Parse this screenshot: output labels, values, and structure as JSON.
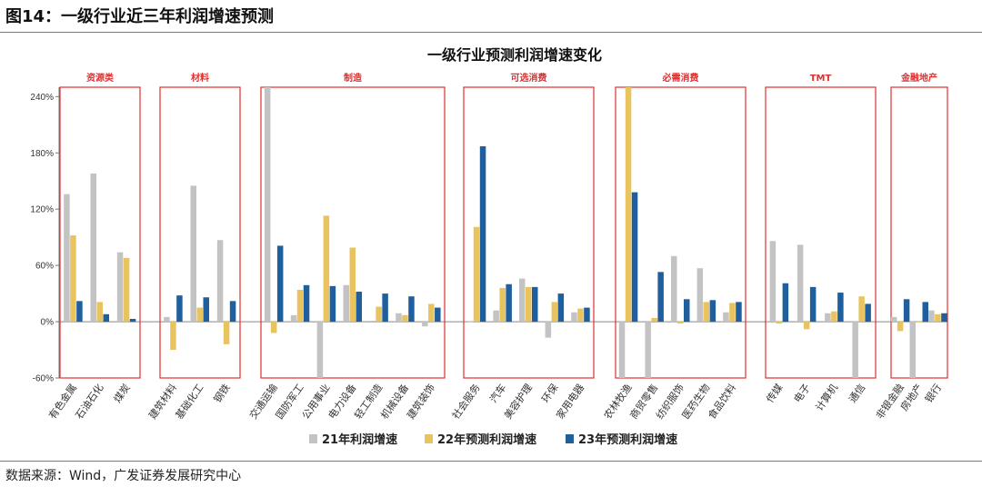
{
  "figure_title": "图14：一级行业近三年利润增速预测",
  "source": "数据来源：Wind，广发证券发展研究中心",
  "colors": {
    "y21": "#c3c3c3",
    "y22": "#e8c35e",
    "y23": "#1f5f9d",
    "group_border": "#e03030"
  },
  "chart_data": {
    "type": "bar",
    "title": "一级行业预测利润增速变化",
    "xlabel": "",
    "ylabel": "",
    "ylim": [
      -60,
      250
    ],
    "yticks": [
      "240%",
      "180%",
      "120%",
      "60%",
      "0%",
      "-60%"
    ],
    "ytick_values": [
      240,
      180,
      120,
      60,
      0,
      -60
    ],
    "series": [
      {
        "name": "21年利润增速",
        "color": "#c3c3c3"
      },
      {
        "name": "22年预测利润增速",
        "color": "#e8c35e"
      },
      {
        "name": "23年预测利润增速",
        "color": "#1f5f9d"
      }
    ],
    "groups": [
      {
        "label": "资源类",
        "industries": [
          {
            "name": "有色金属",
            "values": [
              136,
              92,
              22
            ]
          },
          {
            "name": "石油石化",
            "values": [
              158,
              21,
              8
            ]
          },
          {
            "name": "煤炭",
            "values": [
              74,
              68,
              3
            ]
          }
        ]
      },
      {
        "label": "材料",
        "industries": [
          {
            "name": "建筑材料",
            "values": [
              5,
              -30,
              28
            ]
          },
          {
            "name": "基础化工",
            "values": [
              145,
              15,
              26
            ]
          },
          {
            "name": "钢铁",
            "values": [
              87,
              -24,
              22
            ]
          }
        ]
      },
      {
        "label": "制造",
        "industries": [
          {
            "name": "交通运输",
            "values": [
              250,
              -12,
              81
            ]
          },
          {
            "name": "国防军工",
            "values": [
              7,
              34,
              39
            ]
          },
          {
            "name": "公用事业",
            "values": [
              -60,
              113,
              38
            ]
          },
          {
            "name": "电力设备",
            "values": [
              39,
              79,
              32
            ]
          },
          {
            "name": "轻工制造",
            "values": [
              1,
              16,
              30
            ]
          },
          {
            "name": "机械设备",
            "values": [
              9,
              7,
              27
            ]
          },
          {
            "name": "建筑装饰",
            "values": [
              -5,
              19,
              15
            ]
          }
        ]
      },
      {
        "label": "可选消费",
        "industries": [
          {
            "name": "社会服务",
            "values": [
              0,
              101,
              187
            ]
          },
          {
            "name": "汽车",
            "values": [
              12,
              36,
              40
            ]
          },
          {
            "name": "美容护理",
            "values": [
              46,
              37,
              37
            ]
          },
          {
            "name": "环保",
            "values": [
              -17,
              21,
              30
            ]
          },
          {
            "name": "家用电器",
            "values": [
              10,
              14,
              15
            ]
          }
        ]
      },
      {
        "label": "必需消费",
        "industries": [
          {
            "name": "农林牧渔",
            "values": [
              -60,
              250,
              138
            ]
          },
          {
            "name": "商贸零售",
            "values": [
              -60,
              4,
              53
            ]
          },
          {
            "name": "纺织服饰",
            "values": [
              70,
              -2,
              24
            ]
          },
          {
            "name": "医药生物",
            "values": [
              57,
              21,
              23
            ]
          },
          {
            "name": "食品饮料",
            "values": [
              10,
              20,
              21
            ]
          }
        ]
      },
      {
        "label": "TMT",
        "industries": [
          {
            "name": "传媒",
            "values": [
              86,
              -2,
              41
            ]
          },
          {
            "name": "电子",
            "values": [
              82,
              -8,
              37
            ]
          },
          {
            "name": "计算机",
            "values": [
              9,
              11,
              31
            ]
          },
          {
            "name": "通信",
            "values": [
              -60,
              27,
              19
            ]
          }
        ]
      },
      {
        "label": "金融地产",
        "industries": [
          {
            "name": "非银金融",
            "values": [
              5,
              -10,
              24
            ]
          },
          {
            "name": "房地产",
            "values": [
              -60,
              0,
              21
            ]
          },
          {
            "name": "银行",
            "values": [
              12,
              8,
              9
            ]
          }
        ]
      }
    ]
  }
}
